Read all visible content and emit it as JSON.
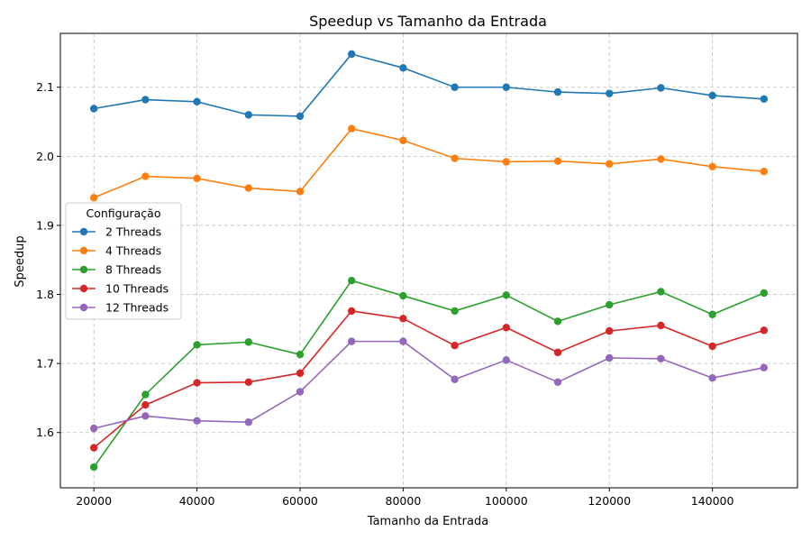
{
  "chart_data": {
    "type": "line",
    "title": "Speedup vs Tamanho da Entrada",
    "xlabel": "Tamanho da Entrada",
    "ylabel": "Speedup",
    "xlim": [
      13500,
      156500
    ],
    "ylim": [
      1.52,
      2.178
    ],
    "x_ticks": [
      20000,
      40000,
      60000,
      80000,
      100000,
      120000,
      140000
    ],
    "y_ticks": [
      1.6,
      1.7,
      1.8,
      1.9,
      2.0,
      2.1
    ],
    "y_tick_labels": [
      "1.6",
      "1.7",
      "1.8",
      "1.9",
      "2.0",
      "2.1"
    ],
    "grid": true,
    "legend": {
      "title": "Configuração",
      "position": "center-left"
    },
    "x": [
      20000,
      30000,
      40000,
      50000,
      60000,
      70000,
      80000,
      90000,
      100000,
      110000,
      120000,
      130000,
      140000,
      150000
    ],
    "series": [
      {
        "name": "2 Threads",
        "color": "#1f77b4",
        "values": [
          2.069,
          2.082,
          2.079,
          2.06,
          2.058,
          2.148,
          2.128,
          2.1,
          2.1,
          2.093,
          2.091,
          2.099,
          2.088,
          2.083
        ]
      },
      {
        "name": "4 Threads",
        "color": "#ff7f0e",
        "values": [
          1.94,
          1.971,
          1.968,
          1.954,
          1.949,
          2.04,
          2.023,
          1.997,
          1.992,
          1.993,
          1.989,
          1.996,
          1.985,
          1.978
        ]
      },
      {
        "name": "8 Threads",
        "color": "#2ca02c",
        "values": [
          1.55,
          1.655,
          1.727,
          1.731,
          1.713,
          1.82,
          1.798,
          1.776,
          1.799,
          1.761,
          1.785,
          1.804,
          1.771,
          1.802
        ]
      },
      {
        "name": "10 Threads",
        "color": "#d62728",
        "values": [
          1.578,
          1.64,
          1.672,
          1.673,
          1.686,
          1.776,
          1.765,
          1.726,
          1.752,
          1.716,
          1.747,
          1.755,
          1.725,
          1.748
        ]
      },
      {
        "name": "12 Threads",
        "color": "#9467bd",
        "values": [
          1.606,
          1.624,
          1.617,
          1.615,
          1.659,
          1.732,
          1.732,
          1.677,
          1.705,
          1.673,
          1.708,
          1.707,
          1.679,
          1.694
        ]
      }
    ]
  }
}
